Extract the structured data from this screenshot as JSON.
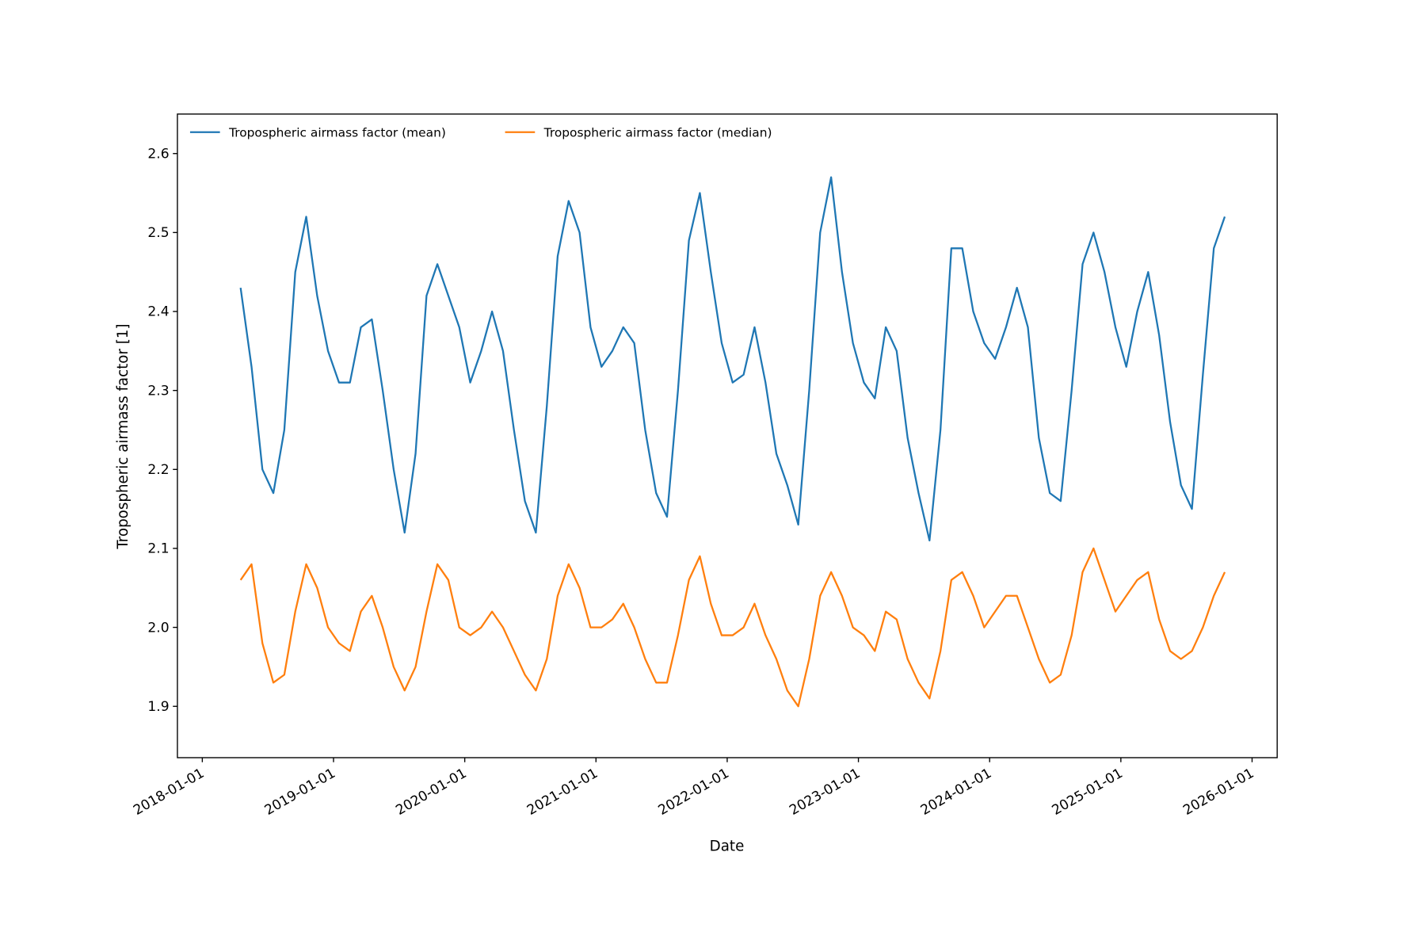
{
  "chart_data": {
    "type": "line",
    "title": "",
    "xlabel": "Date",
    "ylabel": "Tropospheric airmass factor [1]",
    "xlim": [
      "2017-10-23",
      "2026-03-10"
    ],
    "ylim": [
      1.835,
      2.65
    ],
    "legend_position": "top-left",
    "grid": false,
    "x_ticks": [
      "2018-01-01",
      "2019-01-01",
      "2020-01-01",
      "2021-01-01",
      "2022-01-01",
      "2023-01-01",
      "2024-01-01",
      "2025-01-01",
      "2026-01-01"
    ],
    "y_ticks": [
      "1.9",
      "2.0",
      "2.1",
      "2.2",
      "2.3",
      "2.4",
      "2.5",
      "2.6"
    ],
    "x": [
      "2018-04",
      "2018-05",
      "2018-06",
      "2018-07",
      "2018-08",
      "2018-09",
      "2018-10",
      "2018-11",
      "2018-12",
      "2019-01",
      "2019-02",
      "2019-03",
      "2019-04",
      "2019-05",
      "2019-06",
      "2019-07",
      "2019-08",
      "2019-09",
      "2019-10",
      "2019-11",
      "2019-12",
      "2020-01",
      "2020-02",
      "2020-03",
      "2020-04",
      "2020-05",
      "2020-06",
      "2020-07",
      "2020-08",
      "2020-09",
      "2020-10",
      "2020-11",
      "2020-12",
      "2021-01",
      "2021-02",
      "2021-03",
      "2021-04",
      "2021-05",
      "2021-06",
      "2021-07",
      "2021-08",
      "2021-09",
      "2021-10",
      "2021-11",
      "2021-12",
      "2022-01",
      "2022-02",
      "2022-03",
      "2022-04",
      "2022-05",
      "2022-06",
      "2022-07",
      "2022-08",
      "2022-09",
      "2022-10",
      "2022-11",
      "2022-12",
      "2023-01",
      "2023-02",
      "2023-03",
      "2023-04",
      "2023-05",
      "2023-06",
      "2023-07",
      "2023-08",
      "2023-09",
      "2023-10",
      "2023-11",
      "2023-12",
      "2024-01",
      "2024-02",
      "2024-03",
      "2024-04",
      "2024-05",
      "2024-06",
      "2024-07",
      "2024-08",
      "2024-09",
      "2024-10",
      "2024-11",
      "2024-12",
      "2025-01",
      "2025-02",
      "2025-03",
      "2025-04",
      "2025-05",
      "2025-06",
      "2025-07",
      "2025-08",
      "2025-09",
      "2025-10"
    ],
    "series": [
      {
        "name": "Tropospheric airmass factor (mean)",
        "color": "#1f77b4",
        "values": [
          2.43,
          2.33,
          2.2,
          2.17,
          2.25,
          2.45,
          2.52,
          2.42,
          2.35,
          2.31,
          2.31,
          2.38,
          2.39,
          2.3,
          2.2,
          2.12,
          2.22,
          2.42,
          2.46,
          2.42,
          2.38,
          2.31,
          2.35,
          2.4,
          2.35,
          2.25,
          2.16,
          2.12,
          2.28,
          2.47,
          2.54,
          2.5,
          2.38,
          2.33,
          2.35,
          2.38,
          2.36,
          2.25,
          2.17,
          2.14,
          2.3,
          2.49,
          2.55,
          2.45,
          2.36,
          2.31,
          2.32,
          2.38,
          2.31,
          2.22,
          2.18,
          2.13,
          2.3,
          2.5,
          2.57,
          2.45,
          2.36,
          2.31,
          2.29,
          2.38,
          2.35,
          2.24,
          2.17,
          2.11,
          2.25,
          2.48,
          2.48,
          2.4,
          2.36,
          2.34,
          2.38,
          2.43,
          2.38,
          2.24,
          2.17,
          2.16,
          2.3,
          2.46,
          2.5,
          2.45,
          2.38,
          2.33,
          2.4,
          2.45,
          2.37,
          2.26,
          2.18,
          2.15,
          2.32,
          2.48,
          2.52
        ]
      },
      {
        "name": "Tropospheric airmass factor (median)",
        "color": "#ff7f0e",
        "values": [
          2.06,
          2.08,
          1.98,
          1.93,
          1.94,
          2.02,
          2.08,
          2.05,
          2.0,
          1.98,
          1.97,
          2.02,
          2.04,
          2.0,
          1.95,
          1.92,
          1.95,
          2.02,
          2.08,
          2.06,
          2.0,
          1.99,
          2.0,
          2.02,
          2.0,
          1.97,
          1.94,
          1.92,
          1.96,
          2.04,
          2.08,
          2.05,
          2.0,
          2.0,
          2.01,
          2.03,
          2.0,
          1.96,
          1.93,
          1.93,
          1.99,
          2.06,
          2.09,
          2.03,
          1.99,
          1.99,
          2.0,
          2.03,
          1.99,
          1.96,
          1.92,
          1.9,
          1.96,
          2.04,
          2.07,
          2.04,
          2.0,
          1.99,
          1.97,
          2.02,
          2.01,
          1.96,
          1.93,
          1.91,
          1.97,
          2.06,
          2.07,
          2.04,
          2.0,
          2.02,
          2.04,
          2.04,
          2.0,
          1.96,
          1.93,
          1.94,
          1.99,
          2.07,
          2.1,
          2.06,
          2.02,
          2.04,
          2.06,
          2.07,
          2.01,
          1.97,
          1.96,
          1.97,
          2.0,
          2.04,
          2.07
        ]
      }
    ]
  }
}
